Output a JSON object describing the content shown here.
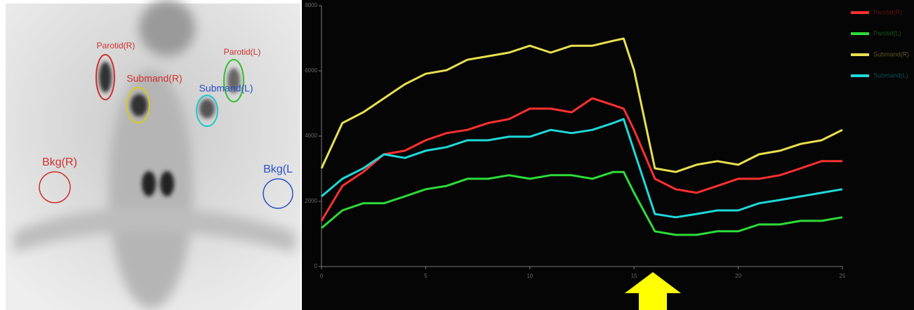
{
  "image": {
    "labels": [
      {
        "text": "Parotid(R)",
        "color": "#d03030"
      },
      {
        "text": "Submand(R)",
        "color": "#d03030"
      },
      {
        "text": "Parotid(L)",
        "color": "#d03030"
      },
      {
        "text": "Submand(L)",
        "color": "#2a4fc8"
      },
      {
        "text": "Bkg(R)",
        "color": "#d03030"
      },
      {
        "text": "Bkg(L",
        "color": "#2a4fc8"
      }
    ]
  },
  "chart_data": {
    "type": "line",
    "x": [
      0,
      1,
      2,
      3,
      4,
      5,
      6,
      7,
      8,
      9,
      10,
      11,
      12,
      13,
      14,
      14.5,
      15,
      16,
      17,
      18,
      19,
      20,
      21,
      22,
      23,
      24,
      25
    ],
    "xlim": [
      0,
      25
    ],
    "xticks": [
      0,
      5,
      10,
      15,
      20,
      25
    ],
    "ylim": [
      0,
      8000
    ],
    "yticks": [
      0,
      2000,
      4000,
      6000,
      8000
    ],
    "legend": "top-right",
    "series": [
      {
        "name": "Parotid(R)",
        "color": "#ff3030",
        "values": [
          1400,
          2470,
          2900,
          3440,
          3550,
          3870,
          4090,
          4190,
          4400,
          4520,
          4840,
          4840,
          4730,
          5160,
          4950,
          4840,
          4190,
          2690,
          2370,
          2260,
          2470,
          2690,
          2690,
          2800,
          3010,
          3230,
          3230
        ]
      },
      {
        "name": "Parotid(L)",
        "color": "#2edc3a",
        "values": [
          1180,
          1720,
          1940,
          1940,
          2150,
          2370,
          2470,
          2690,
          2690,
          2800,
          2690,
          2800,
          2800,
          2690,
          2900,
          2900,
          2260,
          1080,
          970,
          970,
          1080,
          1080,
          1290,
          1290,
          1400,
          1400,
          1510
        ]
      },
      {
        "name": "Submand(R)",
        "color": "#e8e050",
        "values": [
          3010,
          4400,
          4730,
          5160,
          5590,
          5910,
          6020,
          6340,
          6450,
          6560,
          6770,
          6560,
          6770,
          6770,
          6920,
          6990,
          6020,
          3010,
          2900,
          3120,
          3230,
          3120,
          3440,
          3550,
          3760,
          3870,
          4190
        ]
      },
      {
        "name": "Submand(L)",
        "color": "#20d8d8",
        "values": [
          2150,
          2690,
          3010,
          3440,
          3330,
          3550,
          3660,
          3870,
          3870,
          3980,
          3980,
          4190,
          4090,
          4190,
          4400,
          4520,
          3550,
          1610,
          1510,
          1610,
          1720,
          1720,
          1940,
          2040,
          2150,
          2260,
          2370
        ]
      }
    ]
  }
}
